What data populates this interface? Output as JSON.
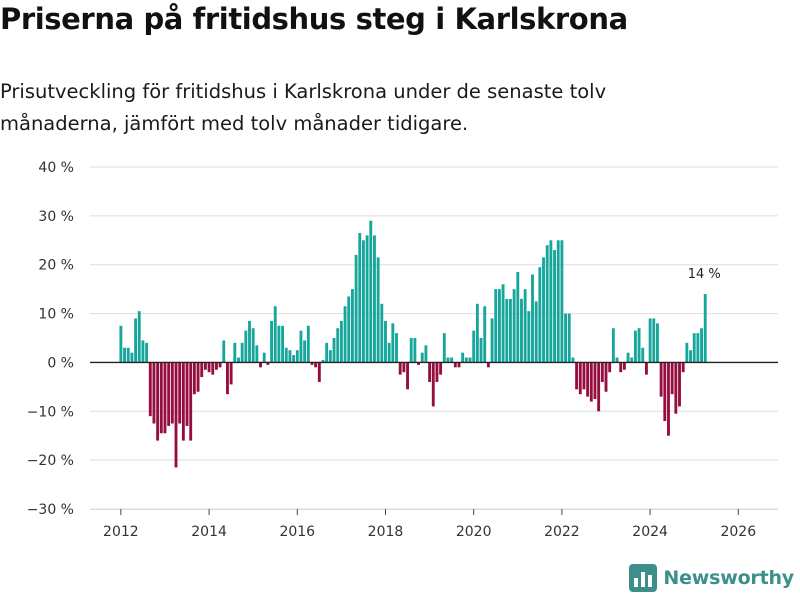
{
  "header": {
    "title": "Priserna på fritidshus steg i Karlskrona",
    "subtitle": "Prisutveckling för fritidshus i Karlskrona under de senaste tolv månaderna, jämfört med tolv månader tidigare."
  },
  "brand": {
    "name": "Newsworthy",
    "icon": "bar-chart-logo-icon"
  },
  "colors": {
    "positive": "#17a69b",
    "negative": "#960d3f",
    "grid": "#dddddd",
    "zero_line": "#222222",
    "brand": "#3c8f8a"
  },
  "chart_data": {
    "type": "bar",
    "title": "Priserna på fritidshus steg i Karlskrona",
    "xlabel": "",
    "ylabel": "",
    "ylim": [
      -30,
      40
    ],
    "yticks": [
      -30,
      -20,
      -10,
      0,
      10,
      20,
      30,
      40
    ],
    "ytick_labels": [
      "−30 %",
      "−20 %",
      "−10 %",
      "0 %",
      "10 %",
      "20 %",
      "30 %",
      "40 %"
    ],
    "xlim": [
      2011.3,
      2026.9
    ],
    "xticks": [
      2012,
      2014,
      2016,
      2018,
      2020,
      2022,
      2024,
      2026
    ],
    "xtick_labels": [
      "2012",
      "2014",
      "2016",
      "2018",
      "2020",
      "2022",
      "2024",
      "2026"
    ],
    "grid": true,
    "start": {
      "year": 2012,
      "month": 1
    },
    "values": [
      7.5,
      3,
      3,
      2,
      9,
      10.5,
      4.5,
      4,
      -11,
      -12.5,
      -16,
      -14.5,
      -14.5,
      -13,
      -12.5,
      -21.5,
      -12.5,
      -16,
      -13,
      -16,
      -6.5,
      -6,
      -3,
      -1.5,
      -2,
      -2.5,
      -1.5,
      -1,
      4.5,
      -6.5,
      -4.5,
      4,
      1,
      4,
      6.5,
      8.5,
      7,
      3.5,
      -1,
      2,
      -0.5,
      8.5,
      11.5,
      7.5,
      7.5,
      3,
      2.5,
      1.5,
      2.5,
      6.5,
      4.5,
      7.5,
      -0.5,
      -1,
      -4,
      0.5,
      4,
      2.5,
      5,
      7,
      8.5,
      11.5,
      13.5,
      15,
      22,
      26.5,
      25,
      26,
      29,
      26,
      21.5,
      12,
      8.5,
      4,
      8,
      6,
      -2.5,
      -2,
      -5.5,
      5,
      5,
      -0.5,
      2,
      3.5,
      -4,
      -9,
      -4,
      -2.5,
      6,
      1,
      1,
      -1,
      -1,
      2,
      1,
      1,
      6.5,
      12,
      5,
      11.5,
      -1,
      9,
      15,
      15,
      16,
      13,
      13,
      15,
      18.5,
      13,
      15,
      10.5,
      18,
      12.5,
      19.5,
      21.5,
      24,
      25,
      23,
      25,
      25,
      10,
      10,
      1,
      -5.5,
      -6.5,
      -5.5,
      -7,
      -8,
      -7.5,
      -10,
      -4,
      -6,
      -2,
      7,
      1,
      -2,
      -1.5,
      2,
      1,
      6.5,
      7,
      3,
      -2.5,
      9,
      9,
      8,
      -7,
      -12,
      -15,
      -6.5,
      -10.5,
      -9,
      -2,
      4,
      2.5,
      6,
      6,
      7,
      14
    ],
    "annotations": [
      {
        "label": "14 %",
        "at": "last-bar"
      }
    ]
  }
}
